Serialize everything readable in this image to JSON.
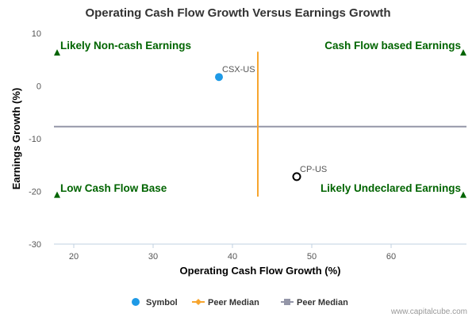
{
  "chart_data": {
    "type": "scatter",
    "title": "Operating Cash Flow Growth Versus Earnings Growth",
    "xlabel": "Operating Cash Flow Growth (%)",
    "ylabel": "Earnings Growth (%)",
    "xlim": [
      17.5,
      69.5
    ],
    "ylim": [
      -30,
      10
    ],
    "x_ticks": [
      "20",
      "30",
      "40",
      "50",
      "60"
    ],
    "y_ticks": [
      "10",
      "0",
      "-10",
      "-20",
      "-30"
    ],
    "grid": false,
    "points": [
      {
        "label": "CSX-US",
        "x": 38.3,
        "y": 1.7,
        "style": "filled",
        "color": "#1f9ae6"
      },
      {
        "label": "CP-US",
        "x": 48.1,
        "y": -17.2,
        "style": "hollow",
        "color": "#000000"
      }
    ],
    "peer_median_x": {
      "x": 43.2,
      "y_from": 6.5,
      "y_to": -21,
      "color": "#f7a52e"
    },
    "peer_median_y": {
      "y": -7.7,
      "x_from": 17.5,
      "x_to": 69.5,
      "color": "#9496a8"
    },
    "quadrant_labels": {
      "top_left": "Likely Non-cash Earnings",
      "top_right": "Cash Flow based Earnings",
      "bottom_left": "Low Cash Flow Base",
      "bottom_right": "Likely Undeclared Earnings"
    },
    "quadrant_marker_color": "#006400",
    "legend": {
      "placement": "bottom-center",
      "items": [
        {
          "label": "Symbol",
          "color": "#1f9ae6",
          "marker": "circle"
        },
        {
          "label": "Peer Median",
          "color": "#f7a52e",
          "marker": "diamond"
        },
        {
          "label": "Peer Median",
          "color": "#9496a8",
          "marker": "square"
        }
      ]
    }
  },
  "credit": "www.capitalcube.com"
}
